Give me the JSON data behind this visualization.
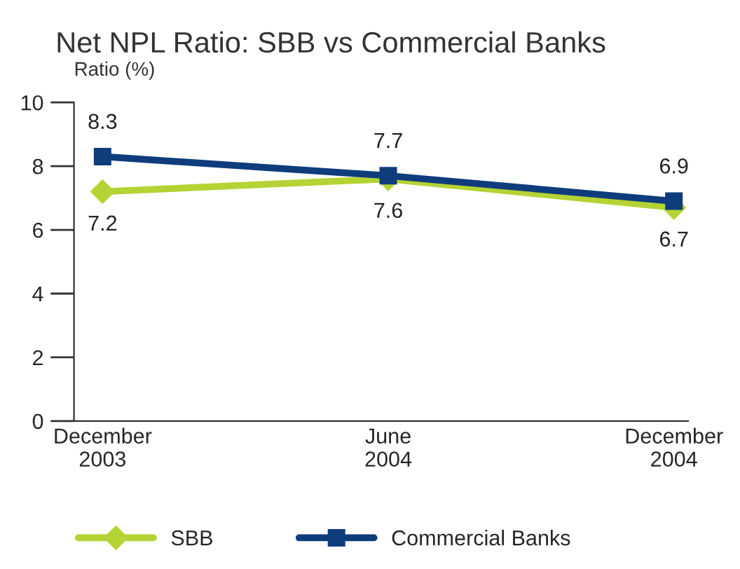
{
  "chart_data": {
    "type": "line",
    "title": "Net NPL Ratio: SBB vs Commercial Banks",
    "ylabel": "Ratio (%)",
    "categories": [
      "December\n2003",
      "June\n2004",
      "December\n2004"
    ],
    "series": [
      {
        "name": "SBB",
        "color": "#b4d334",
        "values": [
          7.2,
          7.6,
          6.7
        ],
        "marker": "diamond"
      },
      {
        "name": "Commercial Banks",
        "color": "#0f3d7c",
        "values": [
          8.3,
          7.7,
          6.9
        ],
        "marker": "square"
      }
    ],
    "ylim": [
      0,
      10
    ],
    "yticks": [
      0,
      2,
      4,
      6,
      8,
      10
    ],
    "data_labels": true,
    "legend": "bottom",
    "grid": false,
    "line_style": "solid"
  }
}
